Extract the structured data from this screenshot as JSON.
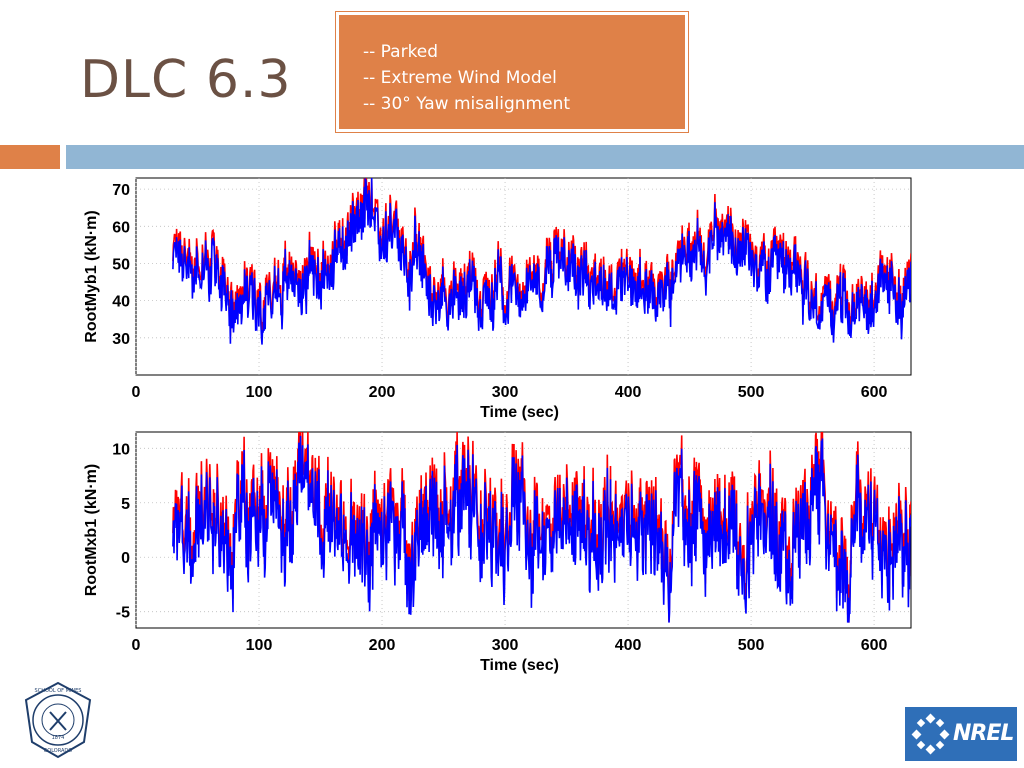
{
  "slide": {
    "title": "DLC 6.3",
    "callout_lines": [
      "-- Parked",
      "-- Extreme Wind Model",
      "-- 30° Yaw misalignment"
    ]
  },
  "colors": {
    "series_red": "#ff0000",
    "series_blue": "#0000ff",
    "accent_orange": "#df8148",
    "accent_blue": "#91b6d4"
  },
  "logos": {
    "mines": {
      "text_top": "SCHOOL OF MINES",
      "text_bottom": "COLORADO",
      "year": "1874"
    },
    "nrel": "NREL"
  },
  "chart_data": [
    {
      "type": "line",
      "xlabel": "Time (sec)",
      "ylabel": "RootMyb1 (kN·m)",
      "xlim": [
        0,
        630
      ],
      "ylim": [
        20,
        73
      ],
      "xticks": [
        0,
        100,
        200,
        300,
        400,
        500,
        600
      ],
      "yticks": [
        30,
        40,
        50,
        60,
        70
      ],
      "grid": true,
      "x_start": 30,
      "series": [
        {
          "color": "#ff0000",
          "mean": [
            55,
            42,
            48,
            62,
            41,
            45,
            52,
            42,
            58,
            46,
            38,
            44
          ],
          "spread": 10
        },
        {
          "color": "#0000ff",
          "mean": [
            54,
            41,
            47,
            61,
            40,
            44,
            51,
            41,
            57,
            45,
            37,
            43
          ],
          "spread": 10
        }
      ]
    },
    {
      "type": "line",
      "xlabel": "Time (sec)",
      "ylabel": "RootMxb1 (kN·m)",
      "xlim": [
        0,
        630
      ],
      "ylim": [
        -6.5,
        11.5
      ],
      "xticks": [
        0,
        100,
        200,
        300,
        400,
        500,
        600
      ],
      "yticks": [
        -5,
        0,
        5,
        10
      ],
      "grid": true,
      "x_start": 30,
      "series": [
        {
          "color": "#ff0000",
          "mean": [
            3,
            3,
            3,
            3.5,
            3,
            3,
            3,
            3,
            3,
            3,
            3,
            3
          ],
          "spread": 6
        },
        {
          "color": "#0000ff",
          "mean": [
            2.5,
            2.5,
            2.5,
            3,
            2.5,
            2.5,
            2.5,
            2.5,
            2.5,
            2.5,
            2.5,
            2.5
          ],
          "spread": 6
        }
      ]
    }
  ]
}
